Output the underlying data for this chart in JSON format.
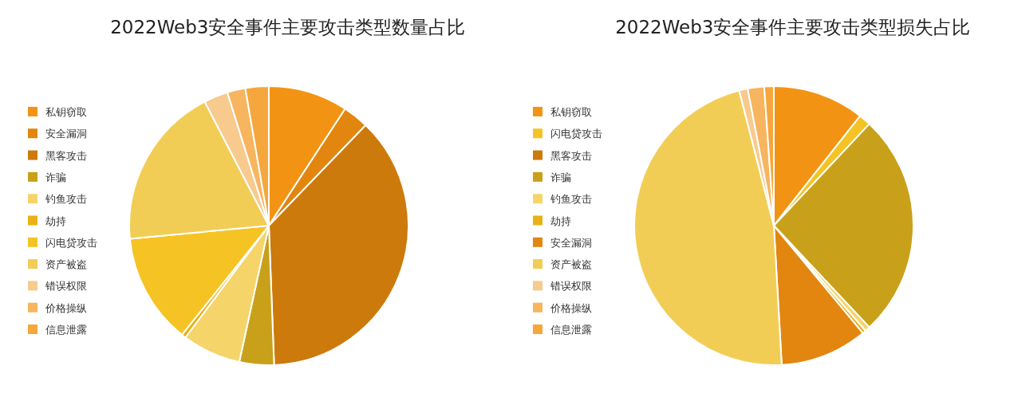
{
  "chart_data": [
    {
      "type": "pie",
      "title": "2022Web3安全事件主要攻击类型数量占比",
      "legend": "left",
      "categories": [
        "私钥窃取",
        "安全漏洞",
        "黑客攻击",
        "诈骗",
        "钓鱼攻击",
        "劫持",
        "闪电贷攻击",
        "资产被盗",
        "错误权限",
        "价格操纵",
        "信息泄露"
      ],
      "values": [
        9.2,
        3.0,
        37.2,
        4.0,
        6.8,
        0.5,
        12.8,
        18.9,
        2.8,
        2.1,
        2.7
      ],
      "colors": [
        "#f39313",
        "#e2860f",
        "#cc7a0b",
        "#c9a01a",
        "#f5d46a",
        "#e8b214",
        "#f5c324",
        "#f2cd56",
        "#f8ca8e",
        "#f6b55e",
        "#f5a63c"
      ]
    },
    {
      "type": "pie",
      "title": "2022Web3安全事件主要攻击类型损失占比",
      "legend": "left",
      "categories": [
        "私钥窃取",
        "闪电贷攻击",
        "黑客攻击",
        "诈骗",
        "钓鱼攻击",
        "劫持",
        "安全漏洞",
        "资产被盗",
        "错误权限",
        "价格操纵",
        "信息泄露"
      ],
      "values": [
        10.6,
        1.4,
        0,
        26.0,
        0.6,
        0.4,
        10.1,
        46.9,
        1.0,
        1.9,
        1.1
      ],
      "colors": [
        "#f39313",
        "#f5c324",
        "#cc7a0b",
        "#c9a01a",
        "#f5d46a",
        "#e8b214",
        "#e2860f",
        "#f2cd56",
        "#f8ca8e",
        "#f6b55e",
        "#f5a63c"
      ]
    }
  ]
}
